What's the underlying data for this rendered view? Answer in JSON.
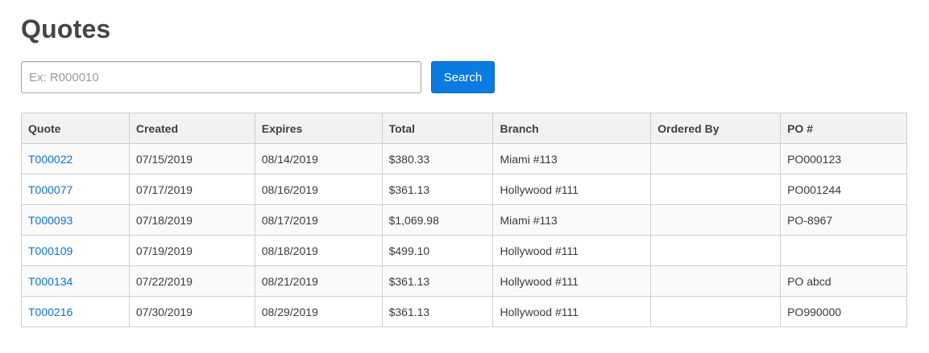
{
  "page": {
    "title": "Quotes"
  },
  "search": {
    "placeholder": "Ex: R000010",
    "value": "",
    "button_label": "Search"
  },
  "table": {
    "columns": [
      "Quote",
      "Created",
      "Expires",
      "Total",
      "Branch",
      "Ordered By",
      "PO #"
    ],
    "rows": [
      {
        "quote": "T000022",
        "created": "07/15/2019",
        "expires": "08/14/2019",
        "total": "$380.33",
        "branch": "Miami #113",
        "ordered_by": "",
        "po": "PO000123"
      },
      {
        "quote": "T000077",
        "created": "07/17/2019",
        "expires": "08/16/2019",
        "total": "$361.13",
        "branch": "Hollywood #111",
        "ordered_by": "",
        "po": "PO001244"
      },
      {
        "quote": "T000093",
        "created": "07/18/2019",
        "expires": "08/17/2019",
        "total": "$1,069.98",
        "branch": "Miami #113",
        "ordered_by": "",
        "po": "PO-8967"
      },
      {
        "quote": "T000109",
        "created": "07/19/2019",
        "expires": "08/18/2019",
        "total": "$499.10",
        "branch": "Hollywood #111",
        "ordered_by": "",
        "po": ""
      },
      {
        "quote": "T000134",
        "created": "07/22/2019",
        "expires": "08/21/2019",
        "total": "$361.13",
        "branch": "Hollywood #111",
        "ordered_by": "",
        "po": "PO abcd"
      },
      {
        "quote": "T000216",
        "created": "07/30/2019",
        "expires": "08/29/2019",
        "total": "$361.13",
        "branch": "Hollywood #111",
        "ordered_by": "",
        "po": "PO990000"
      }
    ]
  },
  "colors": {
    "link": "#0a73d6",
    "button_bg": "#0a7be0",
    "header_bg": "#f2f2f2",
    "border": "#cfcfcf"
  }
}
